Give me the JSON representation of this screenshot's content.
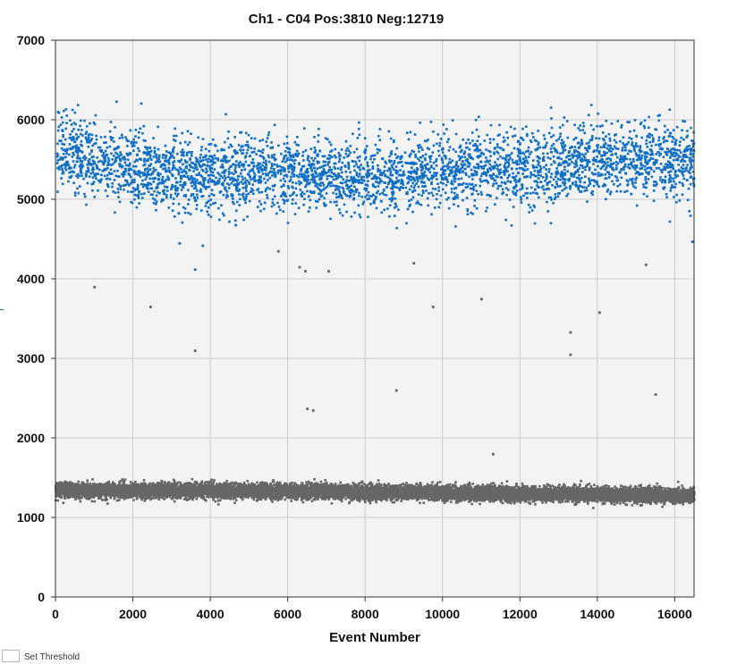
{
  "chart_data": {
    "type": "scatter",
    "title": "Ch1 - C04 Pos:3810 Neg:12719",
    "xlabel": "Event Number",
    "ylabel": "",
    "xlim": [
      0,
      16500
    ],
    "ylim": [
      0,
      7000
    ],
    "xticks": [
      0,
      2000,
      4000,
      6000,
      8000,
      10000,
      12000,
      14000,
      16000
    ],
    "yticks": [
      0,
      1000,
      2000,
      3000,
      4000,
      5000,
      6000,
      7000
    ],
    "grid": true,
    "background_color": "#f3f3f3",
    "grid_color": "#cccccc",
    "series": [
      {
        "class": "positive",
        "color": "#0f6fc6",
        "count": 3810,
        "band_mean_by_event": [
          [
            0,
            5650
          ],
          [
            1000,
            5500
          ],
          [
            2000,
            5400
          ],
          [
            3000,
            5300
          ],
          [
            4000,
            5300
          ],
          [
            6000,
            5350
          ],
          [
            8000,
            5250
          ],
          [
            10000,
            5350
          ],
          [
            12000,
            5400
          ],
          [
            14000,
            5500
          ],
          [
            16000,
            5500
          ],
          [
            16500,
            5500
          ]
        ],
        "band_sd": 230,
        "band_min": 4500,
        "band_max": 6250,
        "outliers": [
          [
            3600,
            4120
          ],
          [
            3800,
            4420
          ],
          [
            3200,
            4450
          ],
          [
            4650,
            4680
          ],
          [
            16450,
            4470
          ]
        ]
      },
      {
        "class": "negative",
        "color": "#666666",
        "count": 12719,
        "band_mean_by_event": [
          [
            0,
            1340
          ],
          [
            4000,
            1340
          ],
          [
            8000,
            1320
          ],
          [
            12000,
            1300
          ],
          [
            16500,
            1280
          ]
        ],
        "band_sd": 45,
        "band_min": 1050,
        "band_max": 1550,
        "outliers": [
          [
            1000,
            3900
          ],
          [
            2450,
            3650
          ],
          [
            3600,
            3100
          ],
          [
            5750,
            4350
          ],
          [
            6300,
            4150
          ],
          [
            6450,
            4100
          ],
          [
            6500,
            2370
          ],
          [
            6650,
            2350
          ],
          [
            7050,
            4100
          ],
          [
            8800,
            2600
          ],
          [
            9250,
            4200
          ],
          [
            9750,
            3650
          ],
          [
            11000,
            3750
          ],
          [
            11300,
            1800
          ],
          [
            13300,
            3330
          ],
          [
            13300,
            3050
          ],
          [
            14050,
            3580
          ],
          [
            15250,
            4180
          ],
          [
            15500,
            2550
          ]
        ]
      }
    ]
  },
  "controls": {
    "set_threshold_label": "Set Threshold"
  }
}
